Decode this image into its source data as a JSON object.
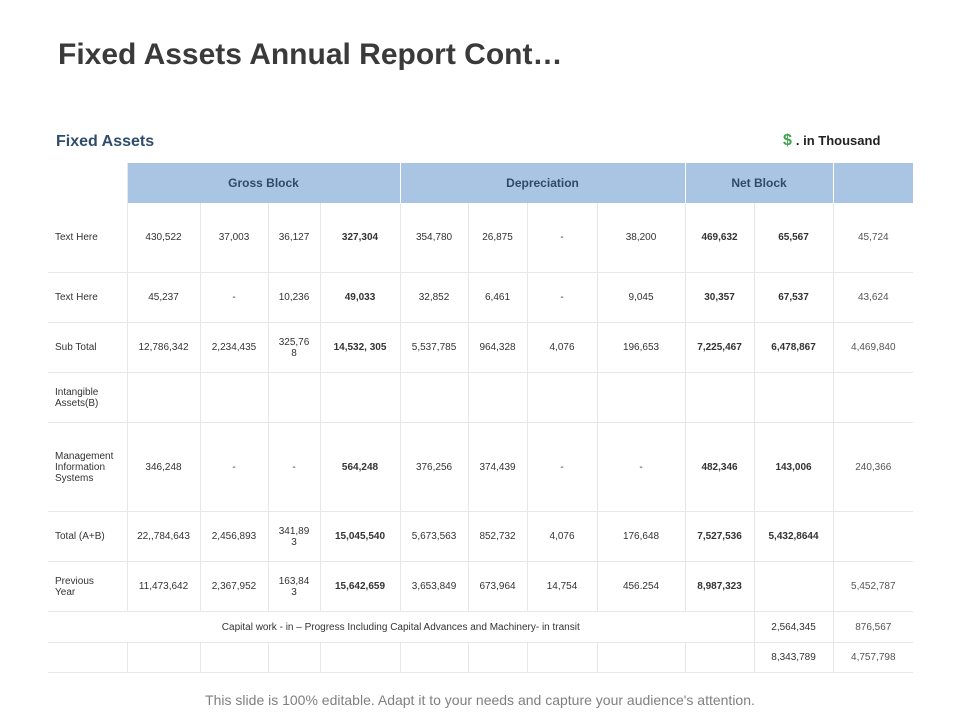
{
  "title": "Fixed Assets Annual Report Cont…",
  "section_label": "Fixed Assets",
  "unit": {
    "symbol": "$",
    "text": ". in Thousand"
  },
  "headers": {
    "gross_block": "Gross Block",
    "depreciation": "Depreciation",
    "net_block": "Net Block"
  },
  "rows": [
    {
      "label": "Text Here",
      "cells": [
        "430,522",
        "37,003",
        "36,127",
        "327,304",
        "354,780",
        "26,875",
        "-",
        "38,200",
        "469,632",
        "65,567",
        "45,724"
      ]
    },
    {
      "label": "Text Here",
      "cells": [
        "45,237",
        "-",
        "10,236",
        "49,033",
        "32,852",
        "6,461",
        "-",
        "9,045",
        "30,357",
        "67,537",
        "43,624"
      ]
    },
    {
      "label": "Sub Total",
      "cells": [
        "12,786,342",
        "2,234,435",
        "325,76\n8",
        "14,532, 305",
        "5,537,785",
        "964,328",
        "4,076",
        "196,653",
        "7,225,467",
        "6,478,867",
        "4,469,840"
      ]
    },
    {
      "label": "Intangible\nAssets(B)",
      "cells": [
        "",
        "",
        "",
        "",
        "",
        "",
        "",
        "",
        "",
        "",
        ""
      ]
    },
    {
      "label": "Management\nInformation\nSystems",
      "cells": [
        "346,248",
        "-",
        "-",
        "564,248",
        "376,256",
        "374,439",
        "-",
        "-",
        "482,346",
        "143,006",
        "240,366"
      ]
    },
    {
      "label": "Total (A+B)",
      "cells": [
        "22,,784,643",
        "2,456,893",
        "341,89\n3",
        "15,045,540",
        "5,673,563",
        "852,732",
        "4,076",
        "176,648",
        "7,527,536",
        "5,432,8644",
        ""
      ]
    },
    {
      "label": "Previous\nYear",
      "cells": [
        "11,473,642",
        "2,367,952",
        "163,84\n3",
        "15,642,659",
        "3,653,849",
        "673,964",
        "14,754",
        "456.254",
        "8,987,323",
        "",
        "5,452,787"
      ]
    }
  ],
  "capital_work": {
    "label": "Capital work - in – Progress Including Capital Advances and Machinery- in transit",
    "values": [
      "2,564,345",
      "876,567"
    ]
  },
  "final_totals": [
    "8,343,789",
    "4,757,798"
  ],
  "footer": "This slide is 100% editable. Adapt it to your needs and capture your audience's attention."
}
